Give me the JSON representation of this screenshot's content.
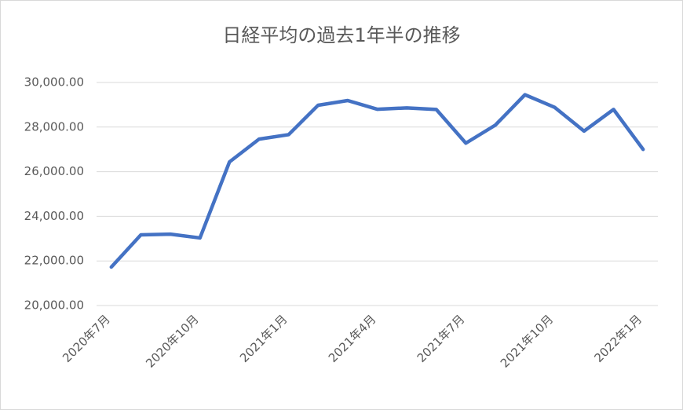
{
  "chart_data": {
    "type": "line",
    "title": "日経平均の過去1年半の推移",
    "categories": [
      "2020年7月",
      null,
      null,
      "2020年10月",
      null,
      null,
      "2021年1月",
      null,
      null,
      "2021年4月",
      null,
      null,
      "2021年7月",
      null,
      null,
      "2021年10月",
      null,
      null,
      "2022年1月"
    ],
    "series": [
      {
        "name": "日経平均",
        "color": "#4472c4",
        "values": [
          21725,
          23170,
          23200,
          23030,
          26440,
          27460,
          27660,
          28980,
          29190,
          28800,
          28860,
          28790,
          27280,
          28090,
          29450,
          28890,
          27820,
          28790,
          27000
        ]
      }
    ],
    "ylim": [
      20000,
      30000
    ],
    "yticks": [
      {
        "value": 20000,
        "label": "20,000.00"
      },
      {
        "value": 22000,
        "label": "22,000.00"
      },
      {
        "value": 24000,
        "label": "24,000.00"
      },
      {
        "value": 26000,
        "label": "26,000.00"
      },
      {
        "value": 28000,
        "label": "28,000.00"
      },
      {
        "value": 30000,
        "label": "30,000.00"
      }
    ],
    "grid": true
  }
}
